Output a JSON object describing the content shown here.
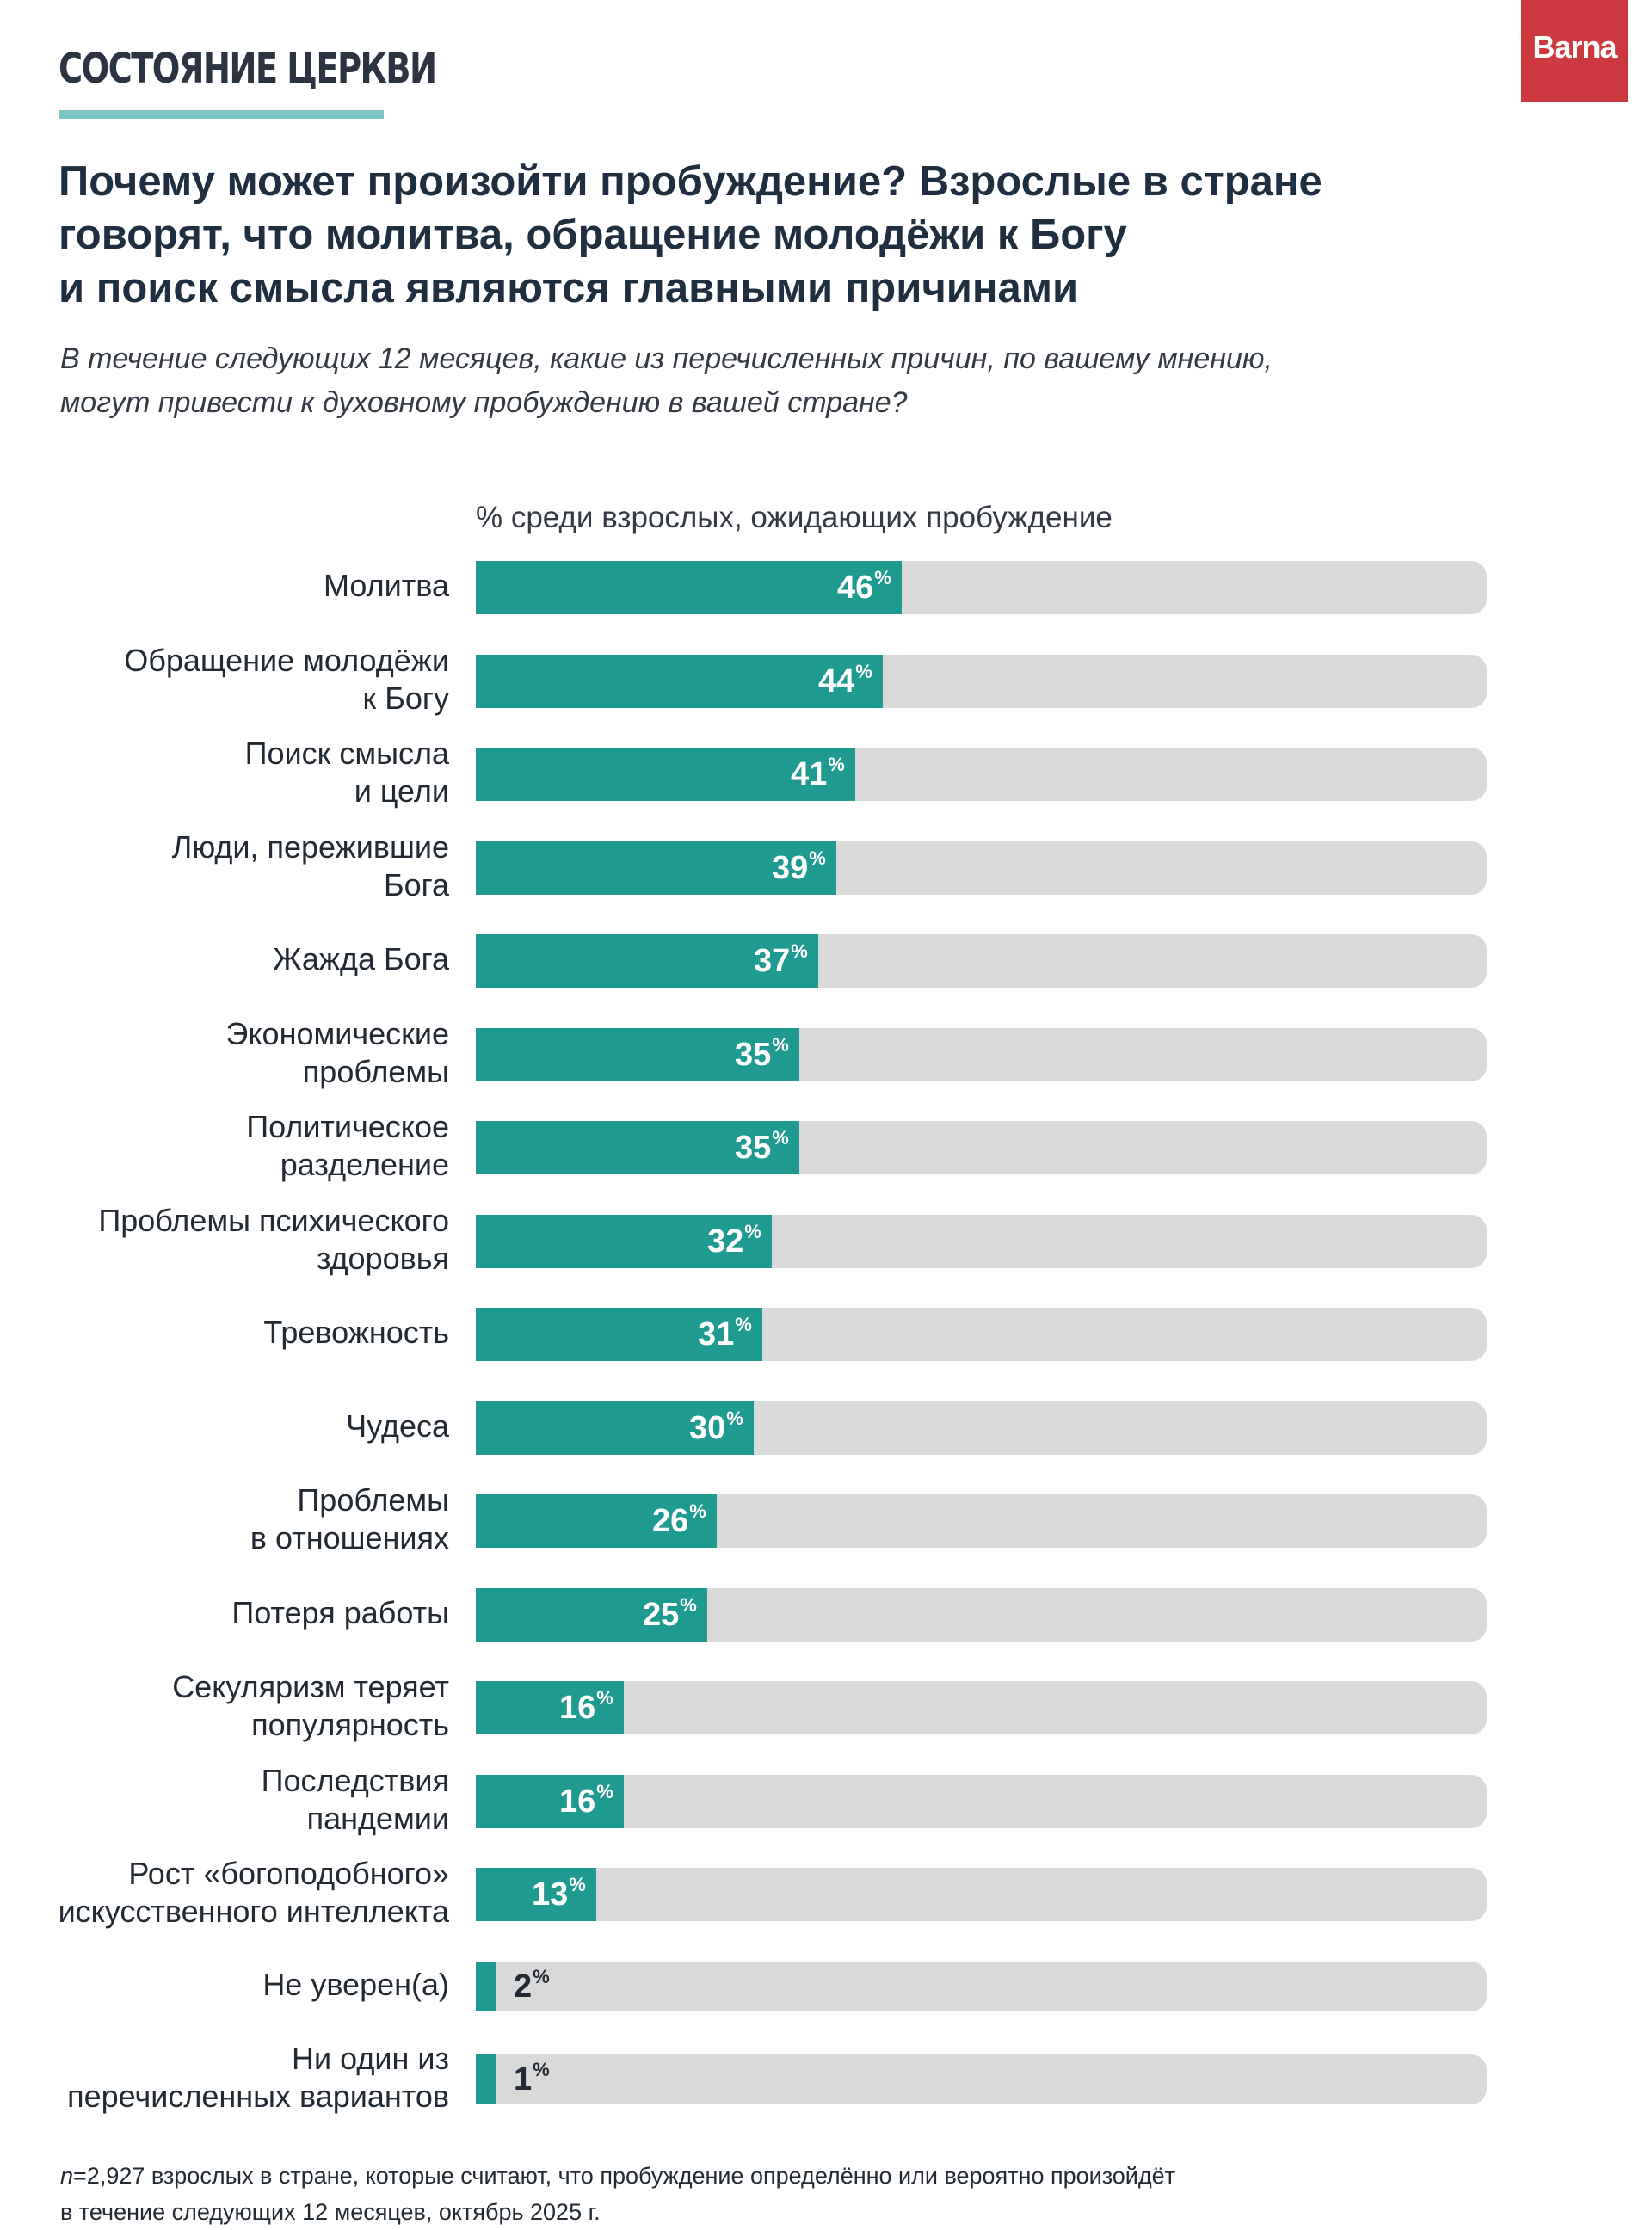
{
  "header": {
    "series_tag": "СОСТОЯНИЕ ЦЕРКВИ",
    "brand": "Barna",
    "title_lines": [
      "Почему может произойти пробуждение? Взрослые в стране",
      "говорят, что молитва, обращение молодёжи к Богу",
      "и поиск смысла являются главными причинами"
    ],
    "subtitle_lines": [
      "В течение следующих 12 месяцев, какие из перечисленных причин, по вашему мнению,",
      "могут привести к духовному пробуждению в вашей стране?"
    ]
  },
  "chart_data": {
    "type": "bar",
    "orientation": "horizontal",
    "axis_caption": "% среди взрослых, ожидающих пробуждение",
    "xlim": [
      0,
      100
    ],
    "value_suffix": "%",
    "categories": [
      [
        "Молитва"
      ],
      [
        "Обращение молодёжи",
        "к Богу"
      ],
      [
        "Поиск смысла",
        "и цели"
      ],
      [
        "Люди, пережившие",
        "Бога"
      ],
      [
        "Жажда Бога"
      ],
      [
        "Экономические",
        "проблемы"
      ],
      [
        "Политическое",
        "разделение"
      ],
      [
        "Проблемы психического",
        "здоровья"
      ],
      [
        "Тревожность"
      ],
      [
        "Чудеса"
      ],
      [
        "Проблемы",
        "в отношениях"
      ],
      [
        "Потеря работы"
      ],
      [
        "Секуляризм теряет",
        "популярность"
      ],
      [
        "Последствия",
        "пандемии"
      ],
      [
        "Рост «богоподобного»",
        "искусственного интеллекта"
      ],
      [
        "Не уверен(а)"
      ],
      [
        "Ни один из",
        "перечисленных вариантов"
      ]
    ],
    "values": [
      46,
      44,
      41,
      39,
      37,
      35,
      35,
      32,
      31,
      30,
      26,
      25,
      16,
      16,
      13,
      2,
      1
    ],
    "colors": {
      "fill": "#1e9a90",
      "track": "#d9d9d9"
    }
  },
  "footnote": {
    "n_symbol": "n",
    "line1": "=2,927 взрослых в стране, которые считают, что пробуждение определённо или вероятно произойдёт",
    "line2": "в течение следующих 12 месяцев, октябрь 2025 г."
  }
}
